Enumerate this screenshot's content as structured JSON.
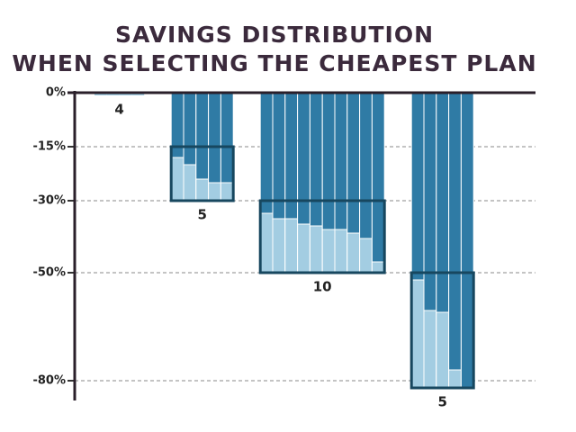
{
  "chart_data": {
    "type": "bar",
    "title": [
      "SAVINGS DISTRIBUTION",
      "WHEN SELECTING THE CHEAPEST PLAN"
    ],
    "ylim": [
      -86,
      0
    ],
    "yticks": [
      {
        "value": 0,
        "label": "0%"
      },
      {
        "value": -15,
        "label": "-15%"
      },
      {
        "value": -30,
        "label": "-30%"
      },
      {
        "value": -50,
        "label": "-50%"
      },
      {
        "value": -80,
        "label": "-80%"
      }
    ],
    "grid": true,
    "colors": {
      "bar": "#2f7ba5",
      "savings": "#a3cde2",
      "box": "#17475f"
    },
    "groups": [
      {
        "count": 4,
        "range": [
          0,
          0
        ],
        "values": [
          0,
          0,
          0,
          0
        ]
      },
      {
        "count": 5,
        "range": [
          -15,
          -30
        ],
        "values": [
          -18,
          -20,
          -24,
          -25,
          -25
        ]
      },
      {
        "count": 10,
        "range": [
          -30,
          -50
        ],
        "values": [
          -33.5,
          -35,
          -35,
          -36.5,
          -37,
          -38,
          -38,
          -39,
          -40.5,
          -47
        ]
      },
      {
        "count": 5,
        "range": [
          -50,
          -82
        ],
        "values": [
          -52,
          -60.5,
          -61,
          -77,
          -82
        ]
      }
    ]
  }
}
